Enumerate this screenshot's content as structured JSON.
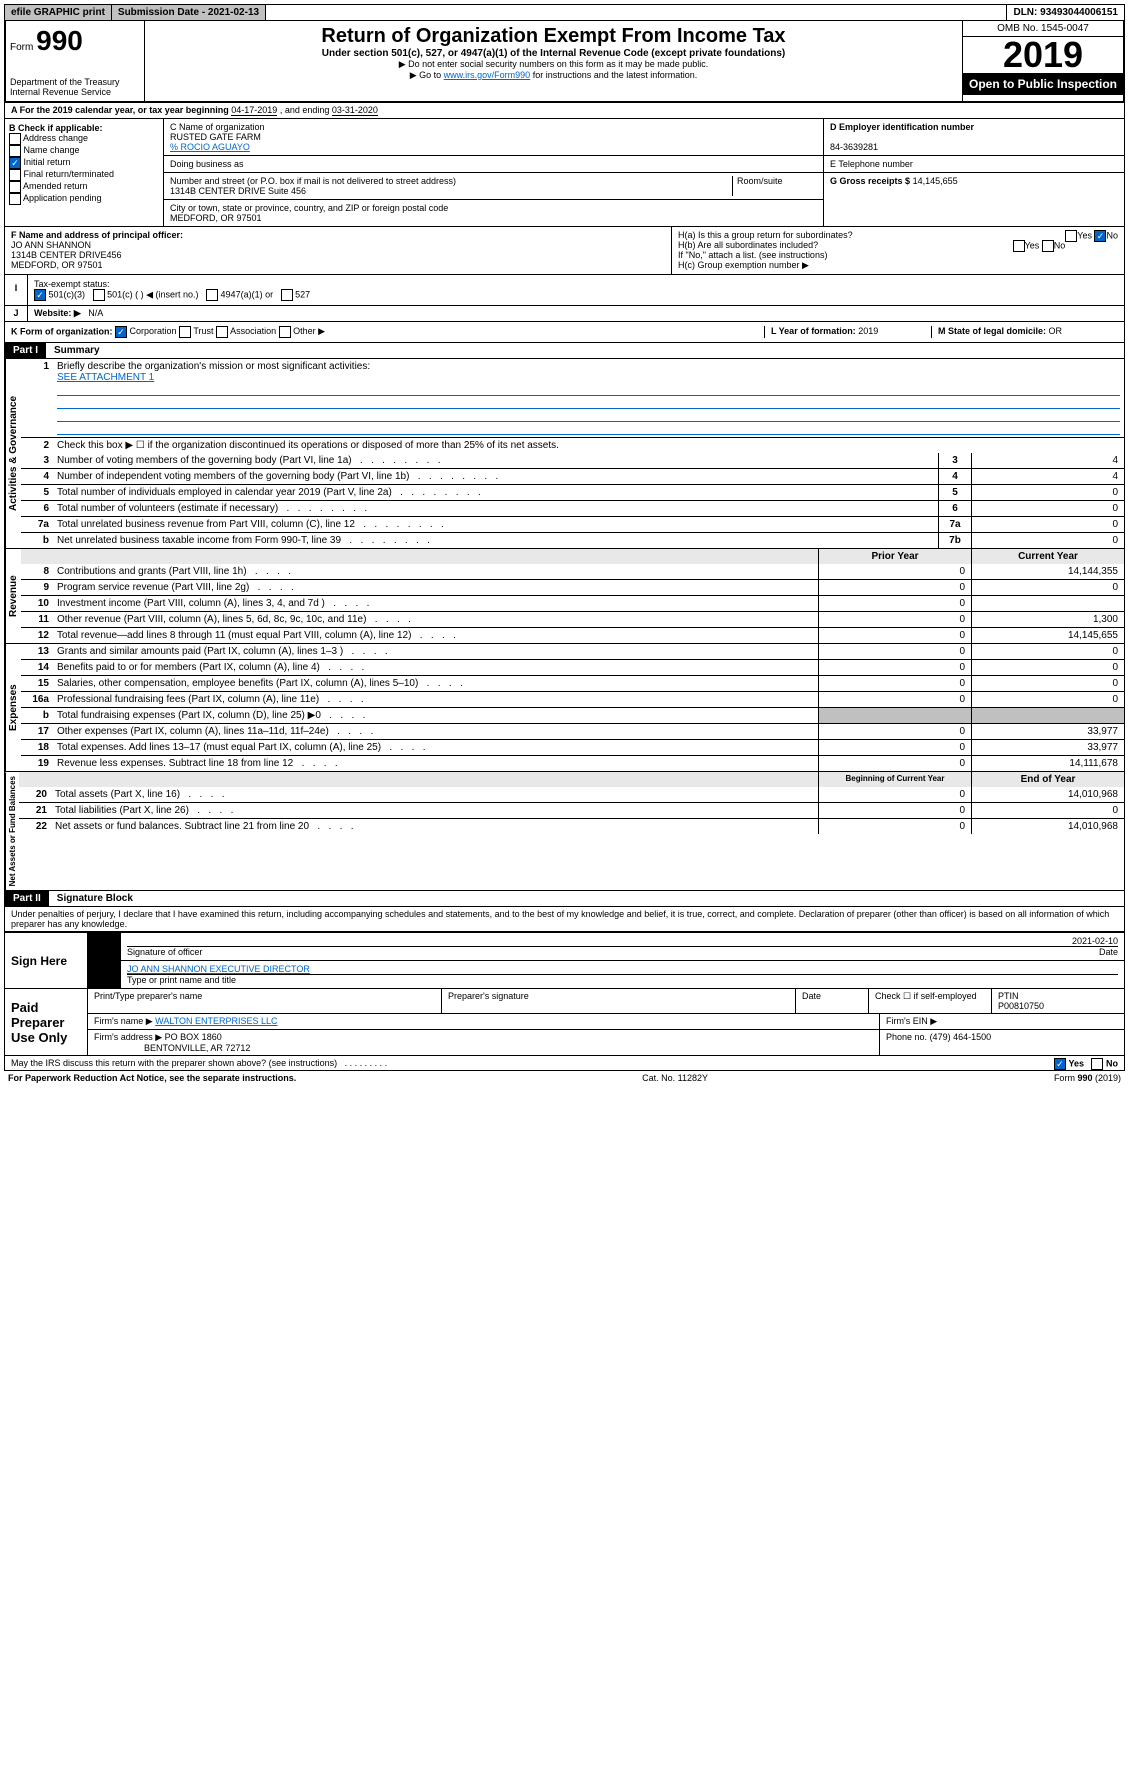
{
  "topbar": {
    "efile": "efile GRAPHIC print",
    "submission": "Submission Date - 2021-02-13",
    "dln": "DLN: 93493044006151"
  },
  "header": {
    "form_label": "Form",
    "form_number": "990",
    "dept": "Department of the Treasury\nInternal Revenue Service",
    "title": "Return of Organization Exempt From Income Tax",
    "subtitle": "Under section 501(c), 527, or 4947(a)(1) of the Internal Revenue Code (except private foundations)",
    "note1": "▶ Do not enter social security numbers on this form as it may be made public.",
    "note2_pre": "▶ Go to ",
    "note2_link": "www.irs.gov/Form990",
    "note2_post": " for instructions and the latest information.",
    "omb": "OMB No. 1545-0047",
    "year": "2019",
    "open": "Open to Public Inspection"
  },
  "period": {
    "label_a": "A For the 2019 calendar year, or tax year beginning ",
    "begin": "04-17-2019",
    "mid": " , and ending ",
    "end": "03-31-2020"
  },
  "box_b": {
    "label": "B Check if applicable:",
    "opts": [
      "Address change",
      "Name change",
      "Initial return",
      "Final return/terminated",
      "Amended return",
      "Application pending"
    ],
    "checked_idx": 2
  },
  "box_c": {
    "name_label": "C Name of organization",
    "name": "RUSTED GATE FARM",
    "care_of": "% ROCIO AGUAYO",
    "dba_label": "Doing business as",
    "addr_label": "Number and street (or P.O. box if mail is not delivered to street address)",
    "room_label": "Room/suite",
    "addr": "1314B CENTER DRIVE Suite 456",
    "city_label": "City or town, state or province, country, and ZIP or foreign postal code",
    "city": "MEDFORD, OR  97501"
  },
  "box_d": {
    "label": "D Employer identification number",
    "val": "84-3639281"
  },
  "box_e": {
    "label": "E Telephone number"
  },
  "box_g": {
    "label": "G Gross receipts $",
    "val": "14,145,655"
  },
  "box_f": {
    "label": "F Name and address of principal officer:",
    "name": "JO ANN SHANNON",
    "addr1": "1314B CENTER DRIVE456",
    "addr2": "MEDFORD, OR  97501"
  },
  "box_h": {
    "a": "H(a)  Is this a group return for subordinates?",
    "b": "H(b)  Are all subordinates included?",
    "b_note": "If \"No,\" attach a list. (see instructions)",
    "c": "H(c)  Group exemption number ▶",
    "yes": "Yes",
    "no": "No"
  },
  "box_i": {
    "label": "Tax-exempt status:",
    "o1": "501(c)(3)",
    "o2": "501(c) (  ) ◀ (insert no.)",
    "o3": "4947(a)(1) or",
    "o4": "527"
  },
  "box_j": {
    "label": "Website: ▶",
    "val": "N/A"
  },
  "box_k": {
    "label": "K Form of organization:",
    "opts": [
      "Corporation",
      "Trust",
      "Association",
      "Other ▶"
    ]
  },
  "box_l": {
    "label": "L Year of formation:",
    "val": "2019"
  },
  "box_m": {
    "label": "M State of legal domicile:",
    "val": "OR"
  },
  "part1": {
    "header": "Part I",
    "title": "Summary",
    "vlabels": [
      "Activities & Governance",
      "Revenue",
      "Expenses",
      "Net Assets or Fund Balances"
    ],
    "q1": "Briefly describe the organization's mission or most significant activities:",
    "q1_ans": "SEE ATTACHMENT 1",
    "q2": "Check this box ▶ ☐  if the organization discontinued its operations or disposed of more than 25% of its net assets.",
    "lines_gov": [
      {
        "n": "3",
        "t": "Number of voting members of the governing body (Part VI, line 1a)",
        "box": "3",
        "v": "4"
      },
      {
        "n": "4",
        "t": "Number of independent voting members of the governing body (Part VI, line 1b)",
        "box": "4",
        "v": "4"
      },
      {
        "n": "5",
        "t": "Total number of individuals employed in calendar year 2019 (Part V, line 2a)",
        "box": "5",
        "v": "0"
      },
      {
        "n": "6",
        "t": "Total number of volunteers (estimate if necessary)",
        "box": "6",
        "v": "0"
      },
      {
        "n": "7a",
        "t": "Total unrelated business revenue from Part VIII, column (C), line 12",
        "box": "7a",
        "v": "0"
      },
      {
        "n": "b",
        "t": "Net unrelated business taxable income from Form 990-T, line 39",
        "box": "7b",
        "v": "0"
      }
    ],
    "hdr_prior": "Prior Year",
    "hdr_curr": "Current Year",
    "lines_rev": [
      {
        "n": "8",
        "t": "Contributions and grants (Part VIII, line 1h)",
        "p": "0",
        "c": "14,144,355"
      },
      {
        "n": "9",
        "t": "Program service revenue (Part VIII, line 2g)",
        "p": "0",
        "c": "0"
      },
      {
        "n": "10",
        "t": "Investment income (Part VIII, column (A), lines 3, 4, and 7d )",
        "p": "0",
        "c": ""
      },
      {
        "n": "11",
        "t": "Other revenue (Part VIII, column (A), lines 5, 6d, 8c, 9c, 10c, and 11e)",
        "p": "0",
        "c": "1,300"
      },
      {
        "n": "12",
        "t": "Total revenue—add lines 8 through 11 (must equal Part VIII, column (A), line 12)",
        "p": "0",
        "c": "14,145,655"
      }
    ],
    "lines_exp": [
      {
        "n": "13",
        "t": "Grants and similar amounts paid (Part IX, column (A), lines 1–3 )",
        "p": "0",
        "c": "0"
      },
      {
        "n": "14",
        "t": "Benefits paid to or for members (Part IX, column (A), line 4)",
        "p": "0",
        "c": "0"
      },
      {
        "n": "15",
        "t": "Salaries, other compensation, employee benefits (Part IX, column (A), lines 5–10)",
        "p": "0",
        "c": "0"
      },
      {
        "n": "16a",
        "t": "Professional fundraising fees (Part IX, column (A), line 11e)",
        "p": "0",
        "c": "0"
      },
      {
        "n": "b",
        "t": "Total fundraising expenses (Part IX, column (D), line 25) ▶0",
        "p": "",
        "c": "",
        "gray": true
      },
      {
        "n": "17",
        "t": "Other expenses (Part IX, column (A), lines 11a–11d, 11f–24e)",
        "p": "0",
        "c": "33,977"
      },
      {
        "n": "18",
        "t": "Total expenses. Add lines 13–17 (must equal Part IX, column (A), line 25)",
        "p": "0",
        "c": "33,977"
      },
      {
        "n": "19",
        "t": "Revenue less expenses. Subtract line 18 from line 12",
        "p": "0",
        "c": "14,111,678"
      }
    ],
    "hdr_begin": "Beginning of Current Year",
    "hdr_end": "End of Year",
    "lines_net": [
      {
        "n": "20",
        "t": "Total assets (Part X, line 16)",
        "p": "0",
        "c": "14,010,968"
      },
      {
        "n": "21",
        "t": "Total liabilities (Part X, line 26)",
        "p": "0",
        "c": "0"
      },
      {
        "n": "22",
        "t": "Net assets or fund balances. Subtract line 21 from line 20",
        "p": "0",
        "c": "14,010,968"
      }
    ]
  },
  "part2": {
    "header": "Part II",
    "title": "Signature Block",
    "perjury": "Under penalties of perjury, I declare that I have examined this return, including accompanying schedules and statements, and to the best of my knowledge and belief, it is true, correct, and complete. Declaration of preparer (other than officer) is based on all information of which preparer has any knowledge.",
    "sign_here": "Sign Here",
    "sig_date": "2021-02-10",
    "sig_officer": "Signature of officer",
    "date_label": "Date",
    "officer_name": "JO ANN SHANNON EXECUTIVE DIRECTOR",
    "type_name": "Type or print name and title",
    "paid": "Paid Preparer Use Only",
    "prep_name_label": "Print/Type preparer's name",
    "prep_sig_label": "Preparer's signature",
    "check_self": "Check ☐ if self-employed",
    "ptin_label": "PTIN",
    "ptin": "P00810750",
    "firm_name_label": "Firm's name   ▶",
    "firm_name": "WALTON ENTERPRISES LLC",
    "firm_ein_label": "Firm's EIN ▶",
    "firm_addr_label": "Firm's address ▶",
    "firm_addr": "PO BOX 1860",
    "firm_city": "BENTONVILLE, AR  72712",
    "phone_label": "Phone no.",
    "phone": "(479) 464-1500",
    "discuss": "May the IRS discuss this return with the preparer shown above? (see instructions)"
  },
  "footer": {
    "left": "For Paperwork Reduction Act Notice, see the separate instructions.",
    "mid": "Cat. No. 11282Y",
    "right": "Form 990 (2019)"
  }
}
